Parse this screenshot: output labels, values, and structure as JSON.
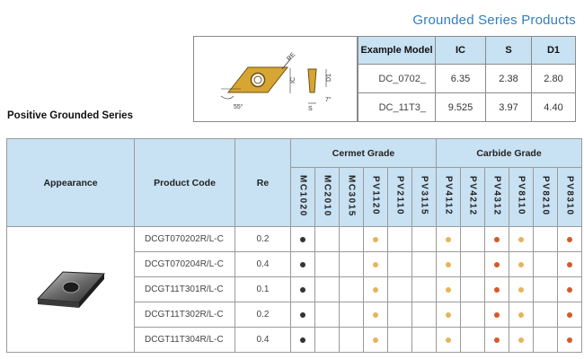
{
  "header": {
    "series_title": "Grounded Series Products",
    "left_title": "Positive Grounded Series"
  },
  "schematic": {
    "labels": {
      "re": "RE",
      "ic": "IC",
      "d1": "D1",
      "s": "S",
      "angle_55": "55°",
      "angle_7": "7°"
    }
  },
  "dims_table": {
    "headers": [
      "Example Model",
      "IC",
      "S",
      "D1"
    ],
    "rows": [
      {
        "model": "DC_0702_",
        "ic": "6.35",
        "s": "2.38",
        "d1": "2.80"
      },
      {
        "model": "DC_11T3_",
        "ic": "9.525",
        "s": "3.97",
        "d1": "4.40"
      }
    ]
  },
  "main_table": {
    "headers": {
      "appearance": "Appearance",
      "product_code": "Product Code",
      "re": "Re",
      "cermet": "Cermet Grade",
      "carbide": "Carbide Grade"
    },
    "cermet_grades": [
      "MC1020",
      "MC2010",
      "MC3015",
      "PV1120",
      "PV2110",
      "PV3115"
    ],
    "carbide_grades": [
      "PV4112",
      "PV4212",
      "PV4312",
      "PV8110",
      "PV8210",
      "PV8310"
    ],
    "rows": [
      {
        "code": "DCGT070202R/L-C",
        "re": "0.2"
      },
      {
        "code": "DCGT070204R/L-C",
        "re": "0.4"
      },
      {
        "code": "DCGT11T301R/L-C",
        "re": "0.1"
      },
      {
        "code": "DCGT11T302R/L-C",
        "re": "0.2"
      },
      {
        "code": "DCGT11T304R/L-C",
        "re": "0.4"
      }
    ],
    "dot_pattern": [
      "black",
      "",
      "",
      "yellow",
      "",
      "",
      "yellow",
      "",
      "orange",
      "yellow",
      "",
      "orange"
    ],
    "colors": {
      "black": "#333333",
      "yellow": "#e6b45a",
      "orange": "#d45a28",
      "header_bg": "#c8e1f3",
      "title_blue": "#2f7fc1"
    }
  }
}
